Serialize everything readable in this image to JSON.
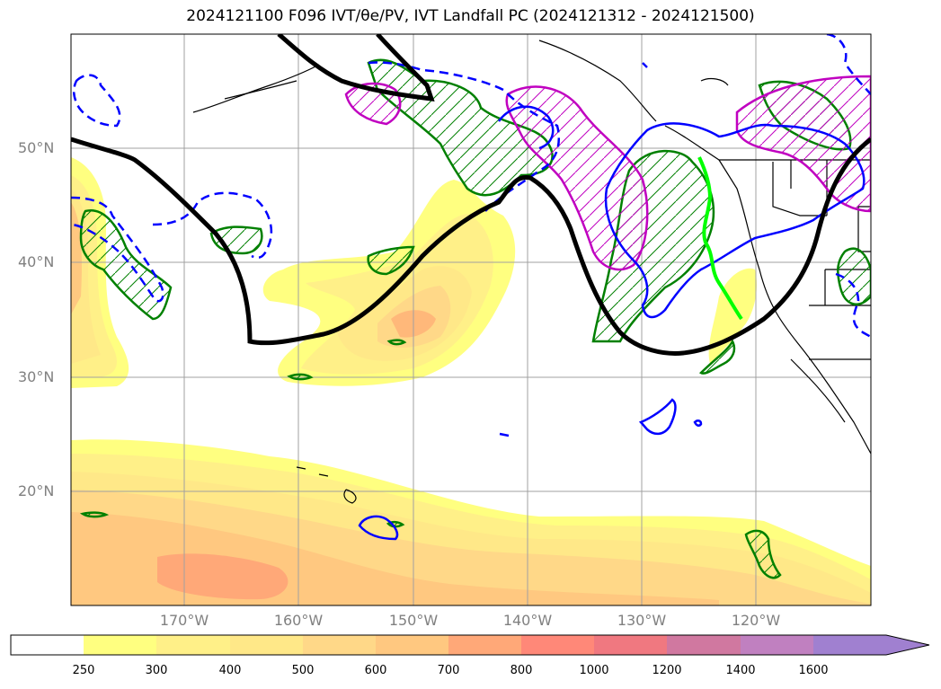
{
  "title": "2024121100 F096 IVT/θe/PV, IVT Landfall PC (2024121312 - 2024121500)",
  "map": {
    "lat_labels": [
      "50°N",
      "40°N",
      "30°N",
      "20°N"
    ],
    "lon_labels": [
      "170°W",
      "160°W",
      "150°W",
      "140°W",
      "130°W",
      "120°W"
    ],
    "colors": {
      "ivt_fill": [
        "#ffffff",
        "#ffff80",
        "#fff080",
        "#ffe080",
        "#ffd080",
        "#ffb87a",
        "#ffa070",
        "#ff8870",
        "#f07080",
        "#e07090",
        "#c080b0",
        "#b080c0"
      ],
      "ivt_contour": "#ff9900",
      "theta_line": "#000000",
      "pv_positive": "#008000",
      "pv_negative": "#0000ff",
      "pc_contour": "#c000c0",
      "landfall_line": "#00ff00",
      "coast": "#000000",
      "grid": "#a0a0a0"
    }
  },
  "colorbar": {
    "ticks": [
      "250",
      "300",
      "400",
      "500",
      "600",
      "700",
      "800",
      "1000",
      "1200",
      "1400",
      "1600"
    ],
    "colors": [
      "#ffffff",
      "#ffff80",
      "#fff088",
      "#ffe888",
      "#ffd888",
      "#ffc880",
      "#ffa878",
      "#ff8878",
      "#f07880",
      "#d078a0",
      "#c080c0",
      "#a080d0"
    ]
  }
}
